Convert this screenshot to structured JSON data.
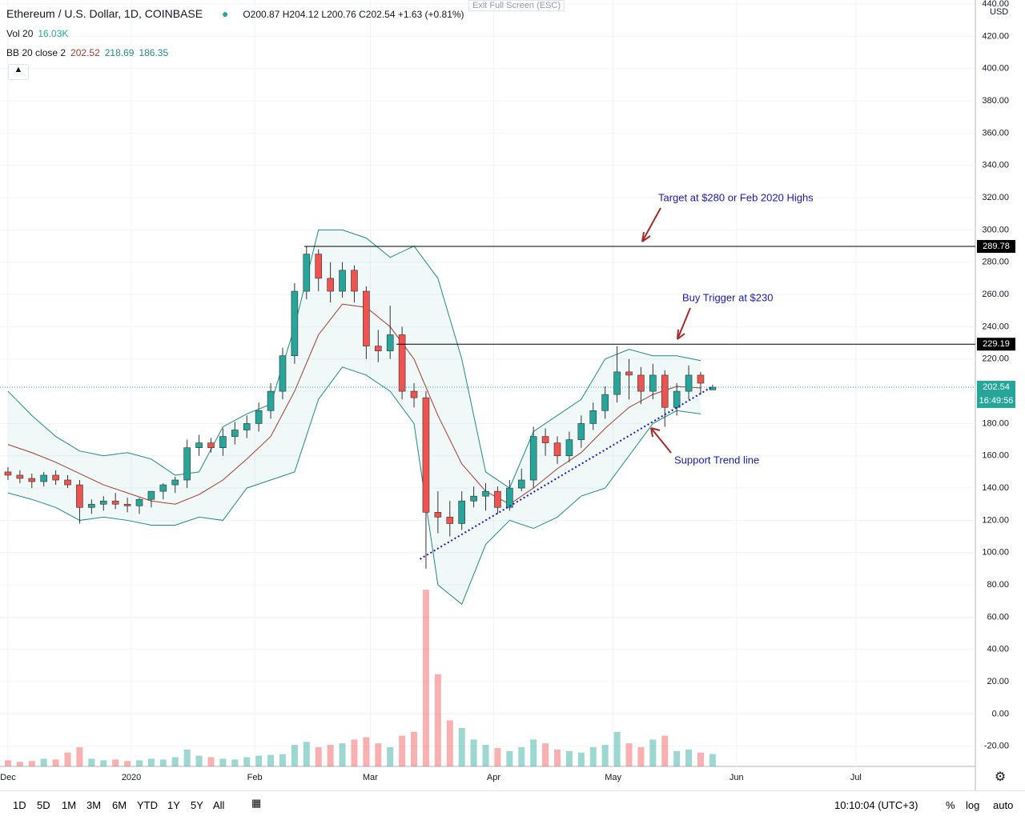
{
  "ui": {
    "title": "Ethereum / U.S. Dollar, 1D, COINBASE",
    "ohlc": "O200.87 H204.12 L200.76 C202.54 +1.63 (+0.81%)",
    "exit": "Exit Full Screen (ESC)",
    "vol_label": "Vol 20",
    "vol_value": "16.03K",
    "bb_label": "BB 20 close 2",
    "bb_mid": "202.52",
    "bb_upper": "218.69",
    "bb_lower": "186.35",
    "currency": "USD",
    "ranges": [
      "1D",
      "5D",
      "1M",
      "3M",
      "6M",
      "YTD",
      "1Y",
      "5Y",
      "All"
    ],
    "clock": "10:10:04 (UTC+3)",
    "pct": "%",
    "log": "log",
    "auto": "auto"
  },
  "chart_data": {
    "type": "candlestick",
    "title": "Ethereum / U.S. Dollar, 1D, COINBASE",
    "xlim": [
      -2,
      243
    ],
    "xticks": [
      {
        "value": 0,
        "label": "Dec"
      },
      {
        "value": 31,
        "label": "2020"
      },
      {
        "value": 62,
        "label": "Feb"
      },
      {
        "value": 91,
        "label": "Mar"
      },
      {
        "value": 122,
        "label": "Apr"
      },
      {
        "value": 152,
        "label": "May"
      },
      {
        "value": 183,
        "label": "Jun"
      },
      {
        "value": 213,
        "label": "Jul"
      }
    ],
    "ylim": [
      -32.5,
      442.5
    ],
    "yticks": [
      {
        "value": 440,
        "label": "440.00"
      },
      {
        "value": 420,
        "label": "420.00"
      },
      {
        "value": 400,
        "label": "400.00"
      },
      {
        "value": 380,
        "label": "380.00"
      },
      {
        "value": 360,
        "label": "360.00"
      },
      {
        "value": 340,
        "label": "340.00"
      },
      {
        "value": 320,
        "label": "320.00"
      },
      {
        "value": 300,
        "label": "300.00"
      },
      {
        "value": 280,
        "label": "280.00"
      },
      {
        "value": 260,
        "label": "260.00"
      },
      {
        "value": 240,
        "label": "240.00"
      },
      {
        "value": 220,
        "label": "220.00"
      },
      {
        "value": 200,
        "label": "200.00"
      },
      {
        "value": 180,
        "label": "180.00"
      },
      {
        "value": 160,
        "label": "160.00"
      },
      {
        "value": 140,
        "label": "140.00"
      },
      {
        "value": 120,
        "label": "120.00"
      },
      {
        "value": 100,
        "label": "100.00"
      },
      {
        "value": 80,
        "label": "80.00"
      },
      {
        "value": 60,
        "label": "60.00"
      },
      {
        "value": 40,
        "label": "40.00"
      },
      {
        "value": 20,
        "label": "20.00"
      },
      {
        "value": 0,
        "label": "0.00"
      },
      {
        "value": -20,
        "label": "-20.00"
      }
    ],
    "grid": true,
    "up_color": "#26a69a",
    "down_color": "#ef5350",
    "x": [
      0,
      3,
      6,
      9,
      12,
      15,
      18,
      21,
      24,
      27,
      30,
      33,
      36,
      39,
      42,
      45,
      48,
      51,
      54,
      57,
      60,
      63,
      66,
      69,
      72,
      75,
      78,
      81,
      84,
      87,
      90,
      93,
      96,
      99,
      102,
      105,
      108,
      111,
      114,
      117,
      120,
      123,
      126,
      129,
      132,
      135,
      138,
      141,
      144,
      147,
      150,
      153,
      156,
      159,
      162,
      165,
      168,
      171,
      174,
      177
    ],
    "open": [
      150,
      148,
      146,
      144,
      148,
      145,
      142,
      128,
      130,
      132,
      130,
      129,
      133,
      138,
      142,
      145,
      165,
      168,
      165,
      172,
      176,
      180,
      188,
      200,
      222,
      262,
      285,
      270,
      262,
      275,
      262,
      228,
      225,
      235,
      200,
      196,
      125,
      122,
      118,
      132,
      135,
      138,
      128,
      140,
      145,
      172,
      168,
      160,
      170,
      180,
      188,
      198,
      212,
      210,
      200,
      210,
      190,
      200,
      210,
      200.87
    ],
    "high": [
      153,
      151,
      149,
      150,
      151,
      148,
      145,
      133,
      135,
      137,
      134,
      134,
      138,
      143,
      147,
      170,
      173,
      171,
      177,
      181,
      185,
      193,
      205,
      227,
      267,
      290,
      288,
      280,
      280,
      278,
      265,
      238,
      253,
      240,
      205,
      200,
      138,
      132,
      138,
      141,
      143,
      141,
      145,
      152,
      178,
      177,
      172,
      175,
      185,
      193,
      203,
      228,
      220,
      215,
      217,
      213,
      205,
      216,
      212,
      204.12
    ],
    "low": [
      145,
      143,
      140,
      141,
      142,
      140,
      118,
      124,
      126,
      127,
      125,
      124,
      128,
      133,
      137,
      140,
      160,
      162,
      160,
      167,
      171,
      175,
      183,
      195,
      217,
      257,
      262,
      255,
      258,
      255,
      220,
      218,
      220,
      195,
      190,
      90,
      112,
      110,
      114,
      128,
      126,
      124,
      126,
      138,
      140,
      160,
      155,
      156,
      165,
      176,
      183,
      193,
      195,
      192,
      195,
      178,
      185,
      195,
      198,
      200.76
    ],
    "close": [
      148,
      146,
      144,
      148,
      145,
      142,
      128,
      130,
      132,
      130,
      129,
      133,
      138,
      142,
      145,
      165,
      168,
      165,
      172,
      176,
      180,
      188,
      200,
      222,
      262,
      285,
      270,
      262,
      275,
      262,
      228,
      225,
      235,
      200,
      196,
      125,
      122,
      118,
      132,
      135,
      138,
      128,
      140,
      145,
      172,
      168,
      160,
      170,
      180,
      188,
      198,
      212,
      210,
      200,
      210,
      190,
      200,
      210,
      205,
      202.54
    ],
    "volume": [
      8,
      6,
      7,
      10,
      9,
      18,
      25,
      10,
      8,
      9,
      7,
      8,
      10,
      9,
      12,
      22,
      14,
      12,
      10,
      9,
      12,
      14,
      15,
      16,
      28,
      32,
      25,
      28,
      30,
      35,
      38,
      30,
      25,
      40,
      45,
      230,
      120,
      60,
      50,
      35,
      28,
      24,
      20,
      25,
      35,
      30,
      22,
      20,
      18,
      25,
      28,
      45,
      30,
      25,
      35,
      40,
      20,
      22,
      18,
      16.03
    ],
    "vol_lim": [
      0,
      250
    ],
    "band_x": [
      0,
      6,
      12,
      18,
      24,
      30,
      36,
      42,
      48,
      54,
      60,
      66,
      72,
      78,
      84,
      90,
      96,
      102,
      108,
      114,
      120,
      126,
      132,
      138,
      144,
      150,
      156,
      162,
      168,
      174
    ],
    "bands": [
      {
        "name": "upper",
        "color": "#1f8a84",
        "values": [
          200,
          185,
          172,
          163,
          160,
          162,
          158,
          148,
          150,
          178,
          186,
          192,
          240,
          300,
          300,
          295,
          283,
          290,
          270,
          220,
          150,
          140,
          175,
          185,
          195,
          220,
          226,
          222,
          222,
          219
        ]
      },
      {
        "name": "basis",
        "color": "#a33b32",
        "values": [
          167,
          162,
          156,
          149,
          142,
          137,
          132,
          130,
          136,
          145,
          158,
          172,
          200,
          235,
          254,
          252,
          240,
          220,
          185,
          155,
          138,
          130,
          140,
          152,
          162,
          177,
          190,
          198,
          203,
          202
        ]
      },
      {
        "name": "lower",
        "color": "#1f8a84",
        "values": [
          137,
          133,
          128,
          120,
          122,
          120,
          117,
          117,
          122,
          120,
          140,
          145,
          150,
          195,
          215,
          210,
          200,
          180,
          80,
          68,
          105,
          120,
          115,
          122,
          135,
          140,
          160,
          180,
          188,
          186
        ]
      }
    ],
    "trend_x": [
      103.5,
      177
    ],
    "trend_values": [
      96,
      203
    ],
    "levels": [
      289.78,
      229.19
    ],
    "last_price": 202.54,
    "countdown": "16:49:56",
    "annotations": [
      "Target at $280 or Feb 2020 Highs",
      "Buy Trigger at $230",
      "Support Trend line"
    ]
  }
}
